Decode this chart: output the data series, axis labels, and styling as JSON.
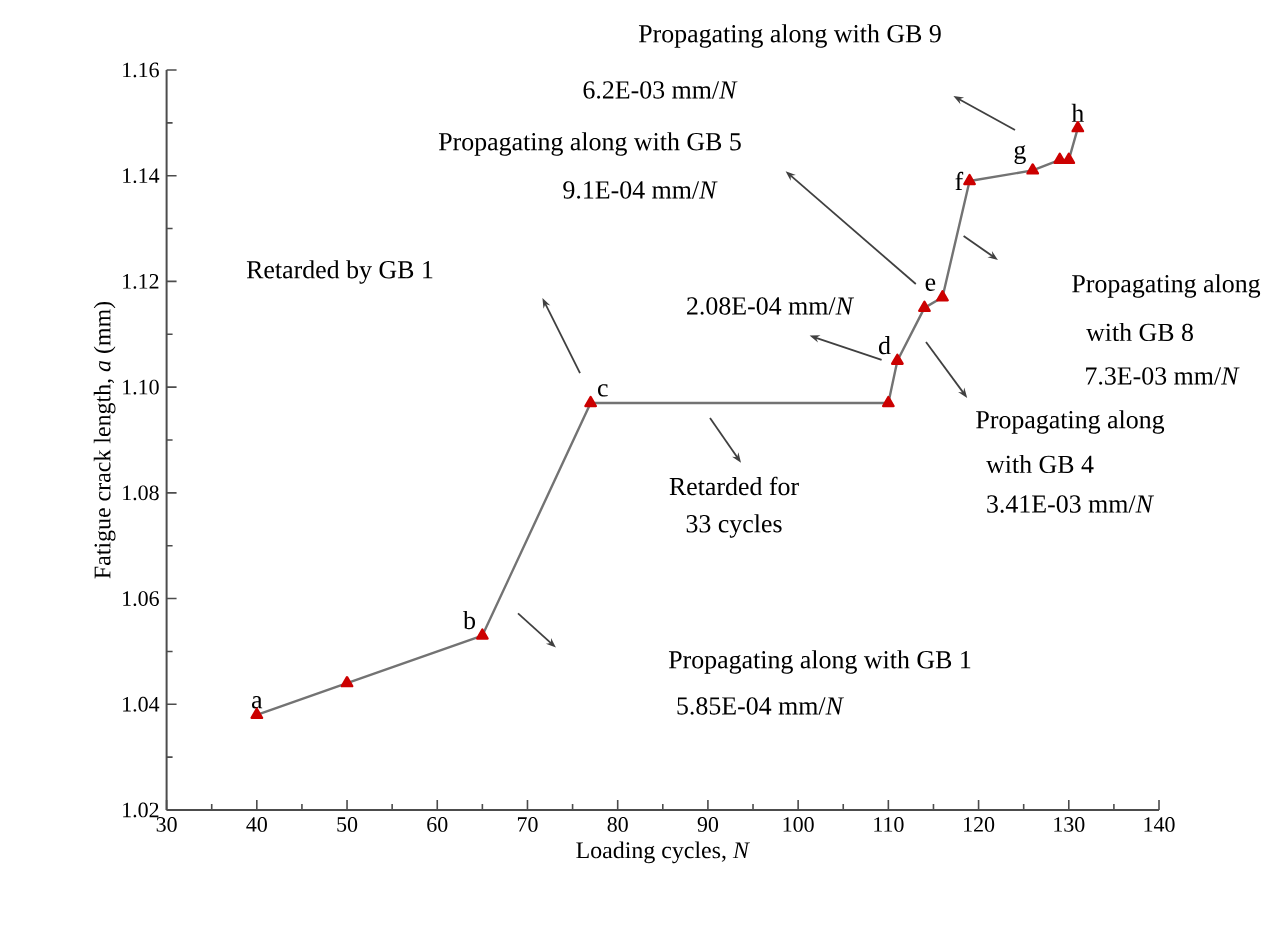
{
  "chart_data": {
    "type": "line",
    "xlabel": "Loading cycles, *N*",
    "ylabel": "Fatigue crack length, *a* (mm)",
    "x": [
      40,
      50,
      65,
      77,
      110,
      111,
      114,
      116,
      119,
      126,
      129,
      130,
      131
    ],
    "series": [
      {
        "color": "#cc0000",
        "values": [
          1.038,
          1.044,
          1.053,
          1.097,
          1.097,
          1.105,
          1.115,
          1.117,
          1.139,
          1.141,
          1.143,
          1.143,
          1.149
        ]
      }
    ],
    "marker": "triangle",
    "line_style": "solid",
    "grid": false,
    "xlim": [
      30,
      140
    ],
    "ylim": [
      1.02,
      1.16
    ],
    "xticks": [
      30,
      40,
      50,
      60,
      70,
      80,
      90,
      100,
      110,
      120,
      130,
      140
    ],
    "yticks": [
      {
        "value": 1.02,
        "label": "1.02"
      },
      {
        "value": 1.04,
        "label": "1.04"
      },
      {
        "value": 1.06,
        "label": "1.06"
      },
      {
        "value": 1.08,
        "label": "1.08"
      },
      {
        "value": 1.1,
        "label": "1.10"
      },
      {
        "value": 1.12,
        "label": "1.12"
      },
      {
        "value": 1.14,
        "label": "1.14"
      },
      {
        "value": 1.16,
        "label": "1.16"
      }
    ],
    "annotations": [
      {
        "text": "a",
        "x": 40,
        "y": 1.038
      },
      {
        "text": "b",
        "x": 65,
        "y": 1.053
      },
      {
        "text": "c",
        "x": 77,
        "y": 1.097
      },
      {
        "text": "d",
        "x": 111,
        "y": 1.105
      },
      {
        "text": "e",
        "x": 116,
        "y": 1.117
      },
      {
        "text": "f",
        "x": 119,
        "y": 1.139
      },
      {
        "text": "g",
        "x": 126,
        "y": 1.141
      },
      {
        "text": "h",
        "x": 131,
        "y": 1.149
      },
      "Propagating along with GB 9",
      "6.2E-03 mm/*N*",
      "Propagating along with GB 5",
      "9.1E-04 mm/*N*",
      "Retarded by GB 1",
      "2.08E-04 mm/*N*",
      "Propagating along",
      "with GB 8",
      "7.3E-03 mm/*N*",
      "Propagating along",
      "with GB 4",
      "3.41E-03 mm/*N*",
      "Retarded for",
      "33 cycles",
      "Propagating along with GB 1",
      "5.85E-04 mm/*N*"
    ]
  }
}
